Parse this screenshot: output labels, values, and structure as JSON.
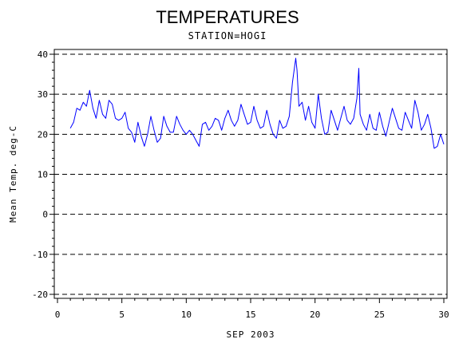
{
  "chart_data": {
    "type": "line",
    "title": "TEMPERATURES",
    "subtitle": "STATION=HOGI",
    "xlabel": "SEP 2003",
    "ylabel": "Mean Temp. deg-C",
    "xlim": [
      0,
      30
    ],
    "ylim": [
      -20,
      40
    ],
    "x_ticks": [
      0,
      5,
      10,
      15,
      20,
      25,
      30
    ],
    "y_ticks": [
      -20,
      -10,
      0,
      10,
      20,
      30,
      40
    ],
    "grid": "horizontal dashed at major y ticks",
    "legend": "none",
    "line_color": "#0000ff",
    "series": [
      {
        "x": [
          1.0,
          1.25,
          1.5,
          1.75,
          2.0,
          2.25,
          2.5,
          2.75,
          3.0,
          3.25,
          3.5,
          3.75,
          4.0,
          4.25,
          4.5,
          4.75,
          5.0,
          5.25,
          5.5,
          5.75,
          6.0,
          6.25,
          6.5,
          6.75,
          7.0,
          7.25,
          7.5,
          7.75,
          8.0,
          8.25,
          8.5,
          8.75,
          9.0,
          9.25,
          9.5,
          9.75,
          10.0,
          10.25,
          10.5,
          10.75,
          11.0,
          11.25,
          11.5,
          11.75,
          12.0,
          12.25,
          12.5,
          12.75,
          13.0,
          13.25,
          13.5,
          13.75,
          14.0,
          14.25,
          14.5,
          14.75,
          15.0,
          15.25,
          15.5,
          15.75,
          16.0,
          16.25,
          16.5,
          16.75,
          17.0,
          17.25,
          17.5,
          17.75,
          18.0,
          18.25,
          18.5,
          18.6,
          18.75,
          19.0,
          19.25,
          19.5,
          19.75,
          20.0,
          20.25,
          20.5,
          20.75,
          21.0,
          21.25,
          21.5,
          21.75,
          22.0,
          22.25,
          22.5,
          22.75,
          23.0,
          23.25,
          23.4,
          23.5,
          23.75,
          24.0,
          24.25,
          24.5,
          24.75,
          25.0,
          25.25,
          25.5,
          25.75,
          26.0,
          26.25,
          26.5,
          26.75,
          27.0,
          27.25,
          27.5,
          27.75,
          28.0,
          28.25,
          28.5,
          28.75,
          29.0,
          29.25,
          29.5,
          29.75,
          30.0
        ],
        "values": [
          21.5,
          23.0,
          26.5,
          26.0,
          28.0,
          27.0,
          31.0,
          26.5,
          24.0,
          28.5,
          25.0,
          24.0,
          28.5,
          27.5,
          24.0,
          23.5,
          24.0,
          25.5,
          21.5,
          20.5,
          18.0,
          23.0,
          19.5,
          17.0,
          20.0,
          24.5,
          21.0,
          18.0,
          19.0,
          24.5,
          22.0,
          20.5,
          20.5,
          24.5,
          22.5,
          21.0,
          20.0,
          21.0,
          20.0,
          18.5,
          17.0,
          22.5,
          23.0,
          21.0,
          22.0,
          24.0,
          23.5,
          21.0,
          24.0,
          26.0,
          23.5,
          22.0,
          23.5,
          27.5,
          25.0,
          22.5,
          23.0,
          27.0,
          23.5,
          21.5,
          22.0,
          26.0,
          22.5,
          20.0,
          19.0,
          23.5,
          21.5,
          22.0,
          24.5,
          33.0,
          39.0,
          36.0,
          27.0,
          28.0,
          23.5,
          27.0,
          23.0,
          21.5,
          30.0,
          24.0,
          20.0,
          20.5,
          26.0,
          23.5,
          21.0,
          24.0,
          27.0,
          23.5,
          22.5,
          24.0,
          29.0,
          36.5,
          25.0,
          22.5,
          21.0,
          25.0,
          21.5,
          21.0,
          25.5,
          22.0,
          19.5,
          23.0,
          26.5,
          24.0,
          21.5,
          21.0,
          25.5,
          23.5,
          21.5,
          28.5,
          25.5,
          21.0,
          22.5,
          25.0,
          21.5,
          16.5,
          17.0,
          20.0,
          17.5
        ]
      }
    ]
  }
}
